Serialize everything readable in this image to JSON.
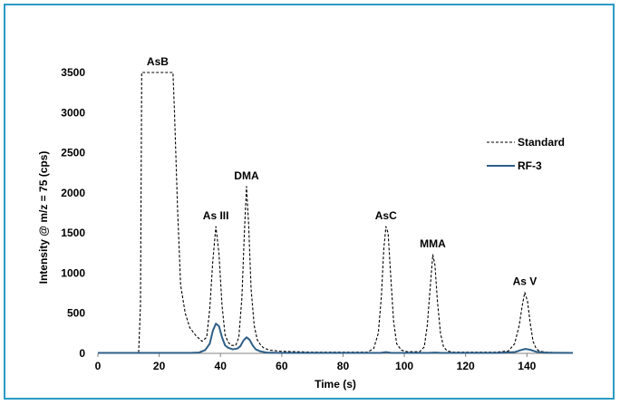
{
  "chart_data": {
    "type": "line",
    "title": "",
    "xlabel": "Time (s)",
    "ylabel": "Intensity @ m/z = 75 (cps)",
    "xlim": [
      0,
      155
    ],
    "ylim": [
      0,
      3500
    ],
    "xticks": [
      0,
      20,
      40,
      60,
      80,
      100,
      120,
      140
    ],
    "yticks": [
      0,
      500,
      1000,
      1500,
      2000,
      2500,
      3000,
      3500
    ],
    "grid": false,
    "legend_position": "right",
    "series": [
      {
        "name": "Standard",
        "style": "dashed",
        "color": "#000000",
        "x": [
          0,
          13.3,
          13.9,
          14.3,
          24.5,
          25,
          26,
          27,
          28.5,
          30,
          32,
          34,
          35.5,
          36.5,
          37.5,
          38.5,
          39.5,
          40.5,
          41.5,
          42.5,
          43.5,
          45,
          46,
          47,
          47.8,
          48.5,
          49.2,
          50,
          51,
          52,
          53,
          54,
          56,
          60,
          70,
          80,
          88,
          90,
          91.5,
          92.5,
          93.3,
          94,
          94.7,
          95.5,
          96.5,
          97.5,
          99,
          101,
          105,
          106.5,
          107.5,
          108.5,
          109.3,
          110,
          110.8,
          111.8,
          112.8,
          114,
          116,
          120,
          130,
          134,
          136,
          137.5,
          138.5,
          139.3,
          140.2,
          141,
          142,
          143,
          144,
          146,
          150,
          155
        ],
        "y": [
          10,
          10,
          600,
          3500,
          3500,
          3000,
          1800,
          850,
          500,
          320,
          220,
          150,
          200,
          550,
          1150,
          1580,
          1250,
          600,
          230,
          140,
          100,
          100,
          200,
          700,
          1500,
          2080,
          1600,
          800,
          350,
          170,
          110,
          70,
          40,
          25,
          15,
          15,
          15,
          60,
          250,
          700,
          1300,
          1580,
          1500,
          1000,
          400,
          120,
          40,
          20,
          20,
          80,
          350,
          850,
          1230,
          1100,
          650,
          250,
          80,
          30,
          15,
          15,
          15,
          30,
          120,
          350,
          600,
          760,
          650,
          400,
          150,
          60,
          30,
          15,
          10,
          10
        ]
      },
      {
        "name": "RF-3",
        "style": "solid",
        "color": "#2e5f87",
        "x": [
          0,
          30,
          33,
          35,
          36.5,
          37.5,
          38.5,
          39.5,
          40.5,
          41.5,
          42.5,
          44,
          45.5,
          46.5,
          47.5,
          48.5,
          49.5,
          50.5,
          51.5,
          53,
          55,
          60,
          80,
          92,
          94,
          96,
          100,
          108,
          110,
          112,
          130,
          136,
          138,
          139.5,
          141,
          143,
          146,
          155
        ],
        "y": [
          5,
          5,
          10,
          40,
          120,
          280,
          370,
          340,
          200,
          100,
          70,
          50,
          60,
          90,
          160,
          200,
          170,
          100,
          50,
          25,
          10,
          5,
          5,
          5,
          15,
          5,
          5,
          5,
          10,
          5,
          5,
          15,
          40,
          55,
          45,
          20,
          8,
          5
        ]
      }
    ],
    "annotations": [
      {
        "text": "AsB",
        "x": 19.5,
        "y": 3500
      },
      {
        "text": "As III",
        "x": 38.5,
        "y": 1580
      },
      {
        "text": "DMA",
        "x": 48.5,
        "y": 2080
      },
      {
        "text": "AsC",
        "x": 94,
        "y": 1580
      },
      {
        "text": "MMA",
        "x": 109.3,
        "y": 1230
      },
      {
        "text": "As V",
        "x": 139.3,
        "y": 760
      }
    ]
  }
}
